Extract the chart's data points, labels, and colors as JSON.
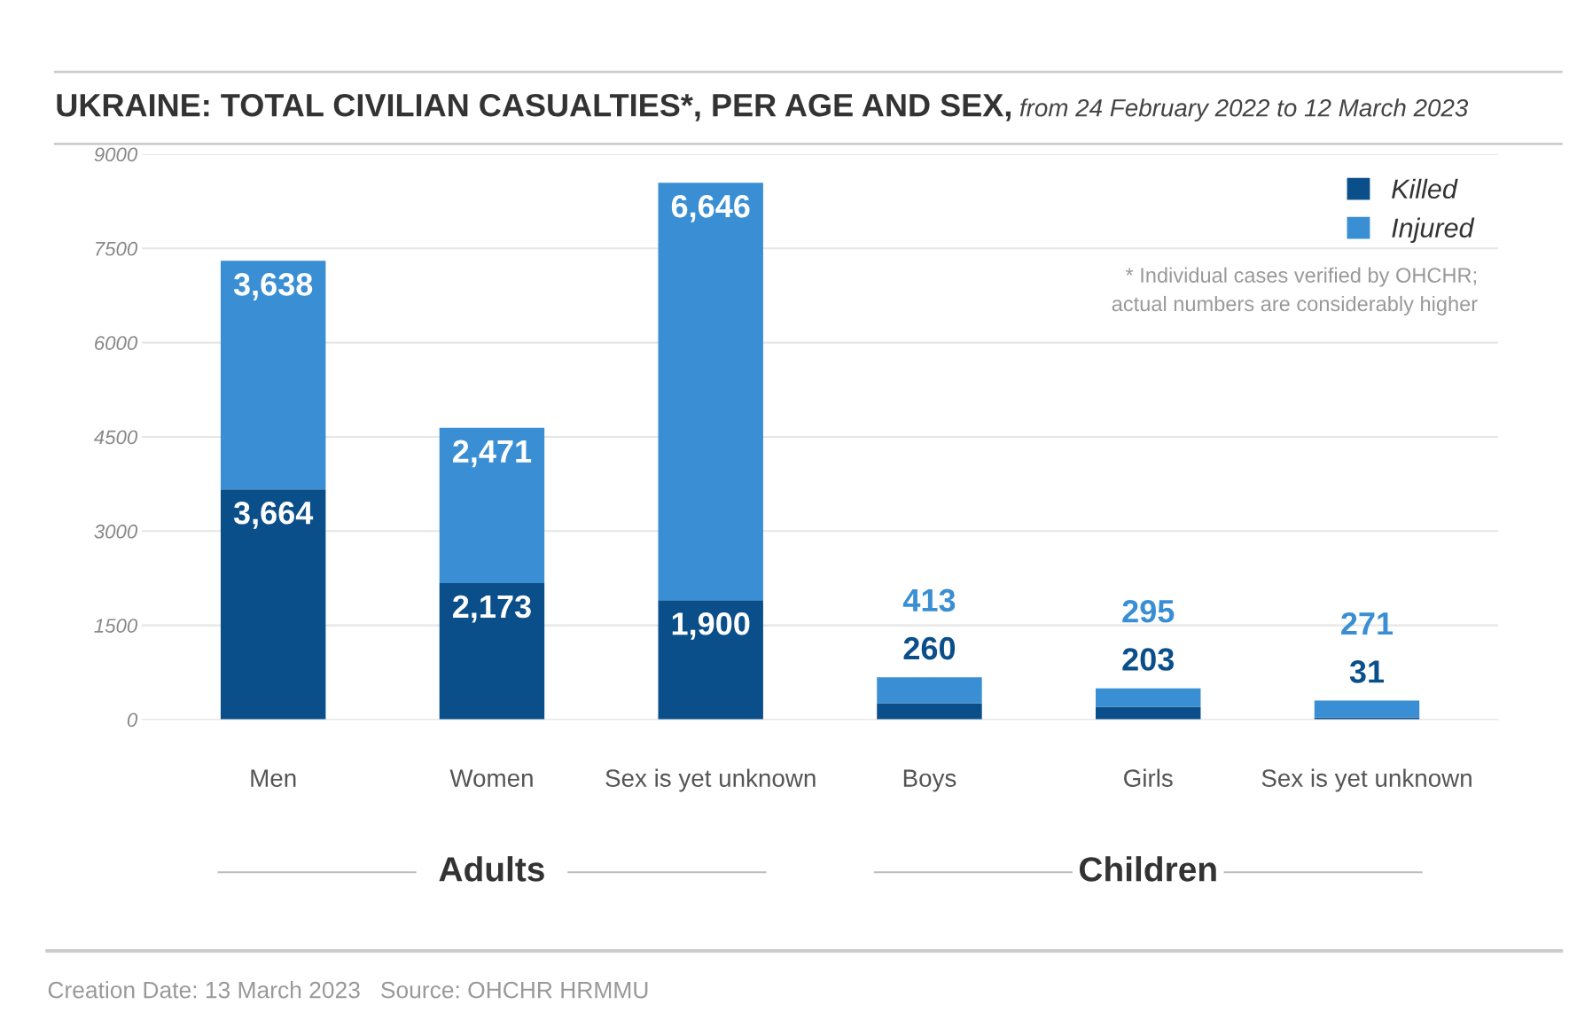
{
  "chart_data": {
    "type": "bar",
    "stacked": true,
    "title": "UKRAINE: TOTAL CIVILIAN CASUALTIES*, PER AGE AND SEX,",
    "subtitle": "from 24 February 2022 to 12 March 2023",
    "categories": [
      "Men",
      "Women",
      "Sex is yet unknown",
      "Boys",
      "Girls",
      "Sex is yet unknown"
    ],
    "series": [
      {
        "name": "Killed",
        "color": "#0b4f8a",
        "values": [
          3664,
          2173,
          1900,
          260,
          203,
          31
        ],
        "value_labels": [
          "3,664",
          "2,173",
          "1,900",
          "260",
          "203",
          "31"
        ]
      },
      {
        "name": "Injured",
        "color": "#3a8fd4",
        "values": [
          3638,
          2471,
          6646,
          413,
          295,
          271
        ],
        "value_labels": [
          "3,638",
          "2,471",
          "6,646",
          "413",
          "295",
          "271"
        ]
      }
    ],
    "ylim": [
      0,
      9000
    ],
    "yticks": [
      0,
      1500,
      3000,
      4500,
      6000,
      7500,
      9000
    ],
    "grid": "y",
    "legend": "top right",
    "annotations": [
      "* Individual cases verified by OHCHR;\nactual numbers are considerably higher",
      "Adults",
      "Children",
      "Creation Date: 13 March 2023",
      "Source: OHCHR HRMMU"
    ]
  }
}
